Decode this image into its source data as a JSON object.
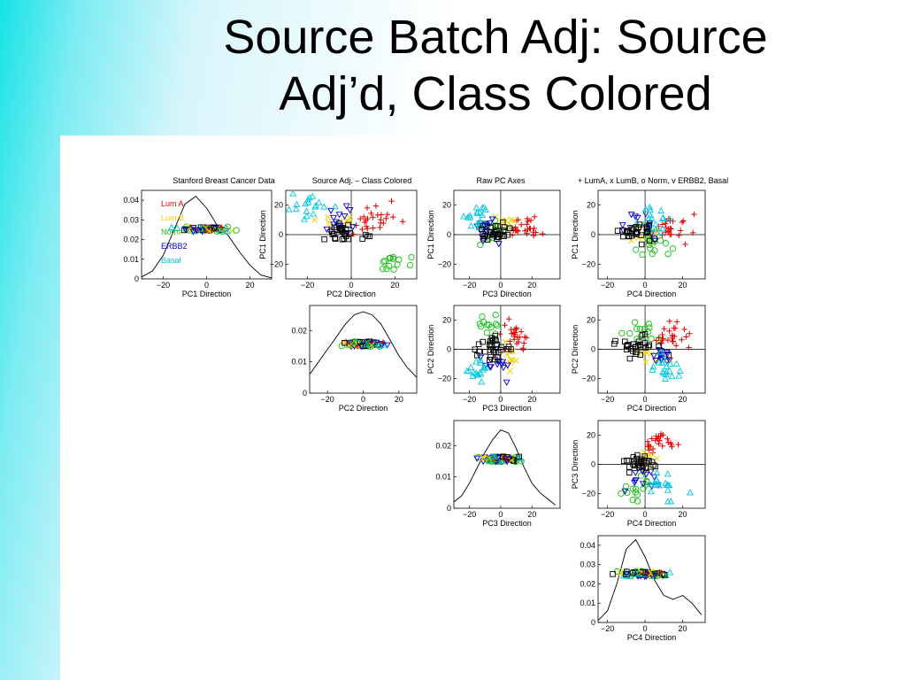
{
  "slide": {
    "title_line1": "Source Batch Adj:  Source",
    "title_line2": "Adj’d, Class Colored"
  },
  "figure": {
    "headers": [
      "Stanford Breast Cancer Data",
      "Source Adj. – Class Colored",
      "Raw PC Axes",
      "+ LumA, x LumB, o Norm, v ERBB2, Basal"
    ]
  },
  "colors": {
    "LumA": "#e00000",
    "LumB": "#f2d000",
    "Norm": "#10c010",
    "ERBB2": "#0000d0",
    "Basal": "#00c8e0",
    "source": "#000000"
  },
  "chart_data": {
    "type": "scatter",
    "layout": "scatterplot matrix of PC1–PC4: diagonal = 1-D projections with kernel density curves, upper triangle = 2-D PC scatterplots",
    "classes": [
      {
        "name": "Lum A",
        "marker": "plus",
        "color": "#e00000"
      },
      {
        "name": "Lum B",
        "marker": "x",
        "color": "#f2d000"
      },
      {
        "name": "Norm",
        "marker": "circle",
        "color": "#10c010"
      },
      {
        "name": "ERBB2",
        "marker": "triangle-down",
        "color": "#0000d0"
      },
      {
        "name": "Basal",
        "marker": "triangle-up",
        "color": "#00c8e0"
      }
    ],
    "source_marker": {
      "marker": "square",
      "color": "#000000"
    },
    "panels": [
      {
        "id": "d1",
        "kind": "density",
        "xlabel": "PC1 Direction",
        "xlim": [
          -30,
          30
        ],
        "ylim": [
          0,
          0.045
        ],
        "xticks": [
          -20,
          0,
          20
        ],
        "yticks": [
          0,
          0.01,
          0.02,
          0.03,
          0.04
        ],
        "density_x": [
          -30,
          -25,
          -20,
          -15,
          -10,
          -5,
          0,
          5,
          10,
          15,
          20,
          25,
          30
        ],
        "density_y": [
          0.001,
          0.004,
          0.012,
          0.025,
          0.038,
          0.042,
          0.036,
          0.027,
          0.022,
          0.014,
          0.007,
          0.002,
          0.0005
        ],
        "legend": [
          "Lum A",
          "Lum B",
          "Norm",
          "ERBB2",
          "Basal"
        ]
      },
      {
        "id": "s12",
        "kind": "scatter",
        "xlabel": "PC2 Direction",
        "ylabel": "PC1 Direction",
        "xlim": [
          -30,
          30
        ],
        "ylim": [
          -30,
          30
        ],
        "xticks": [
          -20,
          0,
          20
        ],
        "yticks": [
          -20,
          0,
          20
        ]
      },
      {
        "id": "s13",
        "kind": "scatter",
        "xlabel": "PC3 Direction",
        "ylabel": "PC1 Direction",
        "xlim": [
          -30,
          38
        ],
        "ylim": [
          -30,
          30
        ],
        "xticks": [
          -20,
          0,
          20
        ],
        "yticks": [
          -20,
          0,
          20
        ]
      },
      {
        "id": "s14",
        "kind": "scatter",
        "xlabel": "PC4 Direction",
        "ylabel": "PC1 Direction",
        "xlim": [
          -25,
          32
        ],
        "ylim": [
          -30,
          30
        ],
        "xticks": [
          -20,
          0,
          20
        ],
        "yticks": [
          -20,
          0,
          20
        ]
      },
      {
        "id": "d2",
        "kind": "density",
        "xlabel": "PC2 Direction",
        "xlim": [
          -30,
          30
        ],
        "ylim": [
          0,
          0.028
        ],
        "xticks": [
          -20,
          0,
          20
        ],
        "yticks": [
          0,
          0.01,
          0.02
        ],
        "density_x": [
          -30,
          -25,
          -20,
          -15,
          -10,
          -5,
          0,
          5,
          10,
          15,
          20,
          25,
          30
        ],
        "density_y": [
          0.006,
          0.01,
          0.014,
          0.018,
          0.022,
          0.025,
          0.026,
          0.025,
          0.022,
          0.017,
          0.012,
          0.008,
          0.005
        ]
      },
      {
        "id": "s23",
        "kind": "scatter",
        "xlabel": "PC3 Direction",
        "ylabel": "PC2 Direction",
        "xlim": [
          -30,
          38
        ],
        "ylim": [
          -30,
          30
        ],
        "xticks": [
          -20,
          0,
          20
        ],
        "yticks": [
          -20,
          0,
          20
        ]
      },
      {
        "id": "s24",
        "kind": "scatter",
        "xlabel": "PC4 Direction",
        "ylabel": "PC2 Direction",
        "xlim": [
          -25,
          32
        ],
        "ylim": [
          -30,
          30
        ],
        "xticks": [
          -20,
          0,
          20
        ],
        "yticks": [
          -20,
          0,
          20
        ]
      },
      {
        "id": "d3",
        "kind": "density",
        "xlabel": "PC3 Direction",
        "xlim": [
          -30,
          38
        ],
        "ylim": [
          0,
          0.028
        ],
        "xticks": [
          -20,
          0,
          20
        ],
        "yticks": [
          0,
          0.01,
          0.02
        ],
        "density_x": [
          -30,
          -25,
          -20,
          -15,
          -10,
          -5,
          0,
          5,
          10,
          15,
          20,
          25,
          30,
          35
        ],
        "density_y": [
          0.002,
          0.004,
          0.008,
          0.013,
          0.018,
          0.022,
          0.025,
          0.024,
          0.019,
          0.013,
          0.008,
          0.005,
          0.003,
          0.001
        ]
      },
      {
        "id": "s34",
        "kind": "scatter",
        "xlabel": "PC4 Direction",
        "ylabel": "PC3 Direction",
        "xlim": [
          -25,
          32
        ],
        "ylim": [
          -30,
          30
        ],
        "xticks": [
          -20,
          0,
          20
        ],
        "yticks": [
          -20,
          0,
          20
        ]
      },
      {
        "id": "d4",
        "kind": "density",
        "xlabel": "PC4 Direction",
        "xlim": [
          -25,
          32
        ],
        "ylim": [
          0,
          0.045
        ],
        "xticks": [
          -20,
          0,
          20
        ],
        "yticks": [
          0,
          0.01,
          0.02,
          0.03,
          0.04
        ],
        "density_x": [
          -25,
          -20,
          -15,
          -10,
          -5,
          0,
          5,
          10,
          15,
          20,
          25,
          30
        ],
        "density_y": [
          0.001,
          0.006,
          0.02,
          0.038,
          0.043,
          0.034,
          0.022,
          0.014,
          0.012,
          0.014,
          0.01,
          0.004
        ]
      }
    ],
    "points_note": "Point clouds are approximated from the figure; each of the 2-D scatters shows ~100 samples coloured by class, and each density panel shows the same samples jittered along a horizontal band."
  }
}
